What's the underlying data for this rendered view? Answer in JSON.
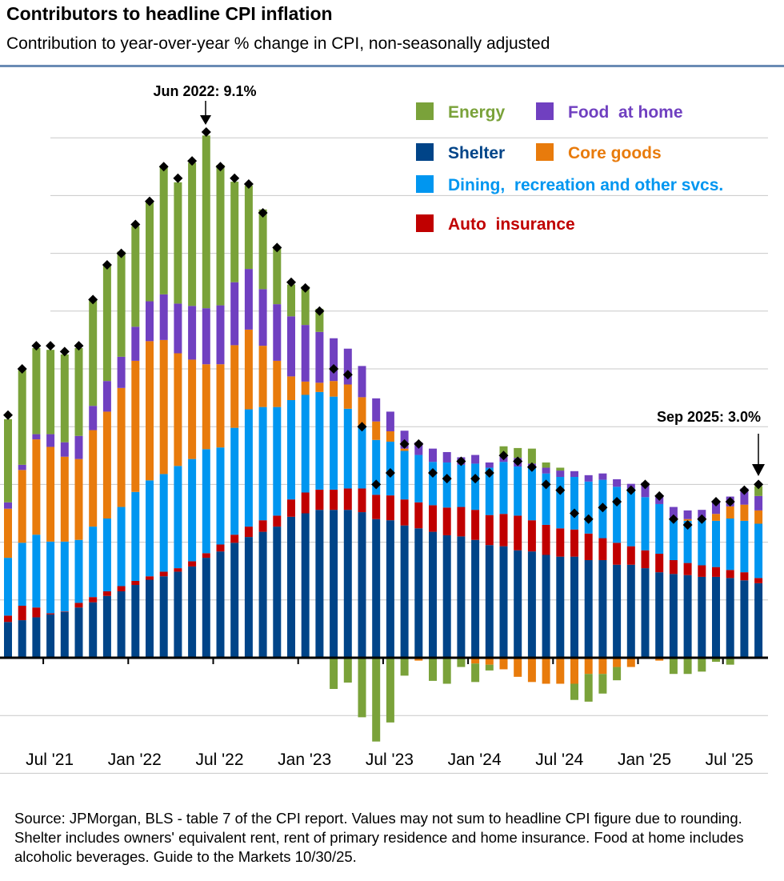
{
  "title": "Contributors to headline CPI inflation",
  "subtitle": "Contribution to year-over-year % change in CPI, non-seasonally adjusted",
  "source": "Source: JPMorgan, BLS - table 7 of the CPI report.  Values may not sum to headline CPI figure due to rounding.  Shelter includes owners' equivalent rent, rent of primary residence and home insurance.  Food at home includes alcoholic beverages.  Guide to the Markets 10/30/25.",
  "chart_data": {
    "type": "bar",
    "stacked": true,
    "ylim": [
      -2,
      10
    ],
    "grid": true,
    "legend_position": "top-right",
    "x_tick_labels": [
      "Jul '21",
      "Jan '22",
      "Jul '22",
      "Jan '23",
      "Jul '23",
      "Jan '24",
      "Jul '24",
      "Jan '25",
      "Jul '25"
    ],
    "categories": [
      "Apr 2021",
      "May 2021",
      "Jun 2021",
      "Jul 2021",
      "Aug 2021",
      "Sep 2021",
      "Oct 2021",
      "Nov 2021",
      "Dec 2021",
      "Jan 2022",
      "Feb 2022",
      "Mar 2022",
      "Apr 2022",
      "May 2022",
      "Jun 2022",
      "Jul 2022",
      "Aug 2022",
      "Sep 2022",
      "Oct 2022",
      "Nov 2022",
      "Dec 2022",
      "Jan 2023",
      "Feb 2023",
      "Mar 2023",
      "Apr 2023",
      "May 2023",
      "Jun 2023",
      "Jul 2023",
      "Aug 2023",
      "Sep 2023",
      "Oct 2023",
      "Nov 2023",
      "Dec 2023",
      "Jan 2024",
      "Feb 2024",
      "Mar 2024",
      "Apr 2024",
      "May 2024",
      "Jun 2024",
      "Jul 2024",
      "Aug 2024",
      "Sep 2024",
      "Oct 2024",
      "Nov 2024",
      "Dec 2024",
      "Jan 2025",
      "Feb 2025",
      "Mar 2025",
      "Apr 2025",
      "May 2025",
      "Jun 2025",
      "Jul 2025",
      "Aug 2025",
      "Sep 2025"
    ],
    "series": [
      {
        "name": "Shelter",
        "color": "#004488",
        "values": [
          0.62,
          0.65,
          0.7,
          0.75,
          0.79,
          0.87,
          0.96,
          1.07,
          1.15,
          1.26,
          1.35,
          1.41,
          1.49,
          1.58,
          1.73,
          1.84,
          1.99,
          2.09,
          2.18,
          2.27,
          2.44,
          2.5,
          2.56,
          2.56,
          2.56,
          2.52,
          2.4,
          2.38,
          2.29,
          2.24,
          2.18,
          2.12,
          2.1,
          2.04,
          1.95,
          1.93,
          1.86,
          1.84,
          1.78,
          1.75,
          1.75,
          1.69,
          1.69,
          1.61,
          1.61,
          1.55,
          1.48,
          1.45,
          1.43,
          1.4,
          1.4,
          1.38,
          1.34,
          1.29
        ]
      },
      {
        "name": "Auto insurance",
        "color": "#c00000",
        "values": [
          0.11,
          0.25,
          0.17,
          0.02,
          0.01,
          0.08,
          0.09,
          0.08,
          0.09,
          0.07,
          0.06,
          0.08,
          0.06,
          0.09,
          0.08,
          0.12,
          0.14,
          0.18,
          0.2,
          0.19,
          0.3,
          0.36,
          0.35,
          0.35,
          0.37,
          0.41,
          0.42,
          0.43,
          0.45,
          0.45,
          0.46,
          0.48,
          0.51,
          0.52,
          0.52,
          0.56,
          0.6,
          0.54,
          0.52,
          0.49,
          0.47,
          0.46,
          0.38,
          0.38,
          0.32,
          0.31,
          0.32,
          0.24,
          0.21,
          0.2,
          0.17,
          0.14,
          0.14,
          0.09
        ]
      },
      {
        "name": "Dining, recreation and other svcs.",
        "color": "#0096f0",
        "values": [
          1.0,
          1.09,
          1.26,
          1.24,
          1.21,
          1.09,
          1.22,
          1.26,
          1.37,
          1.54,
          1.66,
          1.69,
          1.77,
          1.77,
          1.8,
          1.68,
          1.85,
          2.03,
          1.96,
          1.88,
          1.72,
          1.69,
          1.69,
          1.61,
          1.38,
          1.09,
          0.95,
          0.93,
          0.84,
          0.82,
          0.75,
          0.78,
          0.73,
          0.8,
          0.82,
          0.9,
          0.85,
          0.92,
          0.89,
          0.89,
          0.91,
          0.9,
          1.01,
          0.97,
          1.0,
          0.92,
          0.86,
          0.72,
          0.73,
          0.78,
          0.8,
          0.89,
          0.89,
          0.94
        ]
      },
      {
        "name": "Core goods",
        "color": "#e87b0c",
        "values": [
          0.85,
          1.26,
          1.65,
          1.64,
          1.47,
          1.4,
          1.67,
          1.85,
          2.06,
          2.27,
          2.41,
          2.32,
          1.95,
          1.72,
          1.47,
          1.44,
          1.43,
          1.38,
          1.06,
          0.8,
          0.41,
          0.23,
          0.16,
          0.27,
          0.42,
          0.49,
          0.32,
          0.18,
          0.04,
          -0.05,
          0,
          0,
          0,
          -0.1,
          -0.12,
          -0.2,
          -0.33,
          -0.42,
          -0.45,
          -0.45,
          -0.45,
          -0.28,
          -0.28,
          -0.16,
          -0.16,
          -0.02,
          -0.05,
          0,
          0.03,
          0,
          0.12,
          0.21,
          0.28,
          0.23
        ]
      },
      {
        "name": "Food at home",
        "color": "#7040c0",
        "values": [
          0.11,
          0.09,
          0.09,
          0.22,
          0.25,
          0.4,
          0.42,
          0.53,
          0.54,
          0.59,
          0.69,
          0.79,
          0.86,
          0.93,
          0.97,
          1.02,
          1.09,
          1.05,
          0.98,
          0.98,
          1.04,
          0.98,
          0.88,
          0.74,
          0.62,
          0.54,
          0.4,
          0.34,
          0.31,
          0.22,
          0.23,
          0.18,
          0.13,
          0.15,
          0.09,
          0.09,
          0.15,
          0.06,
          0.1,
          0.11,
          0.1,
          0.11,
          0.11,
          0.13,
          0.08,
          0.25,
          0.14,
          0.2,
          0.15,
          0.18,
          0.2,
          0.17,
          0.28,
          0.25
        ]
      },
      {
        "name": "Energy",
        "color": "#7aa23a",
        "values": [
          1.44,
          1.64,
          1.49,
          1.46,
          1.52,
          1.52,
          1.85,
          2.01,
          1.82,
          1.74,
          1.72,
          2.22,
          2.1,
          2.48,
          2.99,
          2.43,
          1.74,
          1.44,
          1.38,
          0.98,
          0.55,
          0.67,
          0.4,
          -0.54,
          -0.43,
          -1.03,
          -1.45,
          -1.12,
          -0.31,
          0,
          -0.4,
          -0.45,
          -0.16,
          -0.32,
          -0.1,
          0.18,
          0.17,
          0.26,
          0.09,
          0.05,
          -0.28,
          -0.48,
          -0.34,
          -0.23,
          0,
          0,
          0,
          -0.28,
          -0.28,
          -0.24,
          -0.07,
          -0.12,
          0,
          0.17
        ]
      }
    ],
    "headline": [
      4.2,
      5.0,
      5.4,
      5.4,
      5.3,
      5.4,
      6.2,
      6.8,
      7.0,
      7.5,
      7.9,
      8.5,
      8.3,
      8.6,
      9.1,
      8.5,
      8.3,
      8.2,
      7.7,
      7.1,
      6.5,
      6.4,
      6.0,
      5.0,
      4.9,
      4.0,
      3.0,
      3.2,
      3.7,
      3.7,
      3.2,
      3.1,
      3.4,
      3.1,
      3.2,
      3.5,
      3.4,
      3.3,
      3.0,
      2.9,
      2.5,
      2.4,
      2.6,
      2.7,
      2.9,
      3.0,
      2.8,
      2.4,
      2.3,
      2.4,
      2.7,
      2.7,
      2.9,
      3.0
    ],
    "annotations": [
      {
        "text": "Jun 2022: 9.1%",
        "category": "Jun 2022"
      },
      {
        "text": "Sep 2025: 3.0%",
        "category": "Sep 2025"
      }
    ]
  },
  "legend": [
    {
      "label": "Energy",
      "color": "#7aa23a"
    },
    {
      "label": "Food  at home",
      "color": "#7040c0"
    },
    {
      "label": "Shelter",
      "color": "#004488"
    },
    {
      "label": "Core goods",
      "color": "#e87b0c"
    },
    {
      "label": "Dining,  recreation and other svcs.",
      "color": "#0096f0"
    },
    {
      "label": "Auto  insurance",
      "color": "#c00000"
    }
  ]
}
